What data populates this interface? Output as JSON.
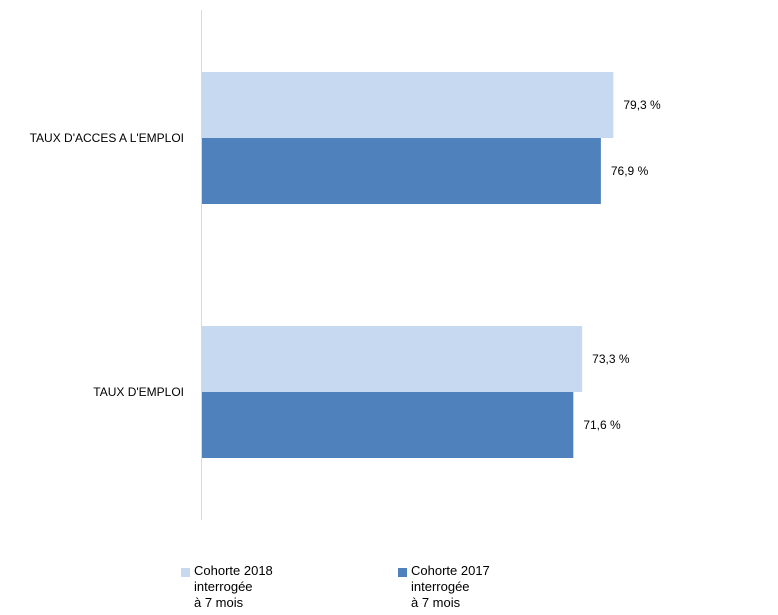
{
  "chart_data": {
    "type": "bar",
    "orientation": "horizontal",
    "categories": [
      "TAUX D'ACCES A L'EMPLOI",
      "TAUX D'EMPLOI"
    ],
    "series": [
      {
        "name": "Cohorte 2018\ninterrogée\nà 7 mois",
        "values": [
          79.3,
          73.3
        ],
        "labels": [
          "79,3 %",
          "73,3 %"
        ],
        "color": "#c6d9f1"
      },
      {
        "name": "Cohorte 2017\ninterrogée\nà 7 mois",
        "values": [
          76.9,
          71.6
        ],
        "labels": [
          "76,9 %",
          "71,6 %"
        ],
        "color": "#4f81bd"
      }
    ],
    "xlim": [
      0,
      100
    ],
    "grid": false,
    "legend": "bottom",
    "title": "",
    "xlabel": "",
    "ylabel": ""
  }
}
